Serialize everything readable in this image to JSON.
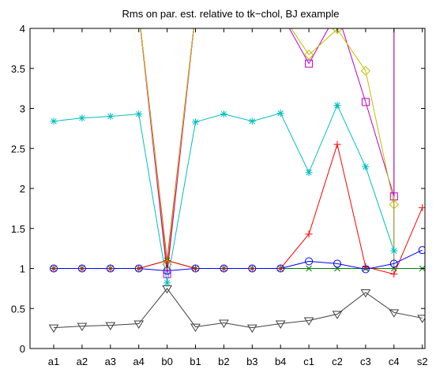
{
  "chart_data": {
    "type": "line",
    "title": "Rms on par. est. relative to tk−chol, BJ example",
    "xlabel": "",
    "ylabel": "",
    "categories": [
      "a1",
      "a2",
      "a3",
      "a4",
      "b0",
      "b1",
      "b2",
      "b3",
      "b4",
      "c1",
      "c2",
      "c3",
      "c4",
      "s2"
    ],
    "ylim": [
      0,
      4
    ],
    "yticks": [
      0,
      0.5,
      1,
      1.5,
      2,
      2.5,
      3,
      3.5,
      4
    ],
    "ytick_labels": [
      "0",
      "0.5",
      "1",
      "1.5",
      "2",
      "2.5",
      "3",
      "3.5",
      "4"
    ],
    "grid": false,
    "series": [
      {
        "color": "#008000",
        "marker": "x",
        "values": [
          1,
          1,
          1,
          1,
          1.1,
          1,
          1,
          1,
          1,
          1,
          1,
          1,
          1,
          1
        ]
      },
      {
        "color": "#ff0000",
        "marker": "plus",
        "values": [
          1,
          1,
          1,
          1,
          1.1,
          1,
          1,
          1,
          1,
          1.43,
          2.55,
          1.02,
          0.93,
          1.76
        ]
      },
      {
        "color": "#0000ff",
        "marker": "circle",
        "values": [
          1,
          1,
          1,
          1,
          0.97,
          1,
          1,
          1,
          1,
          1.09,
          1.06,
          0.99,
          1.06,
          1.23
        ]
      },
      {
        "color": "#00bfbf",
        "marker": "asterisk",
        "values": [
          2.84,
          2.88,
          2.9,
          2.93,
          0.82,
          2.83,
          2.93,
          2.84,
          2.94,
          2.2,
          3.04,
          2.27,
          1.22,
          null
        ]
      },
      {
        "color": "#bf00bf",
        "marker": "square",
        "values": [
          null,
          null,
          null,
          null,
          0.93,
          null,
          null,
          null,
          null,
          3.56,
          4.2,
          3.08,
          1.9,
          null
        ]
      },
      {
        "color": "#bfbf00",
        "marker": "diamond",
        "values": [
          null,
          null,
          null,
          null,
          1.05,
          null,
          null,
          null,
          null,
          3.67,
          3.99,
          3.47,
          1.8,
          null
        ]
      },
      {
        "color": "#404040",
        "marker": "triangle",
        "values": [
          0.26,
          0.28,
          0.29,
          0.31,
          0.75,
          0.27,
          0.32,
          0.26,
          0.31,
          0.35,
          0.43,
          0.7,
          0.45,
          0.38
        ]
      }
    ],
    "offscale_segments": [
      {
        "color": "#ff0000",
        "index": 4,
        "edges": [
          3,
          5
        ]
      },
      {
        "color": "#800000",
        "index": 4,
        "edges": [
          3,
          5
        ]
      },
      {
        "color": "#bf00bf",
        "index": 4,
        "edges": [
          3,
          5
        ]
      },
      {
        "color": "#bfbf00",
        "index": 4,
        "edges": [
          3,
          5
        ]
      },
      {
        "color": "#bf00bf",
        "index": 9,
        "edges": [
          8
        ]
      },
      {
        "color": "#bfbf00",
        "index": 9,
        "edges": [
          8
        ]
      },
      {
        "color": "#bf00bf",
        "index": 10,
        "edges": [
          11
        ]
      },
      {
        "color": "#bfbf00",
        "index": 10,
        "edges": [
          11
        ]
      },
      {
        "color": "#808000",
        "index": 12,
        "edges": [
          12
        ]
      },
      {
        "color": "#bf00bf",
        "index": 12,
        "edges": [
          12
        ]
      }
    ]
  }
}
